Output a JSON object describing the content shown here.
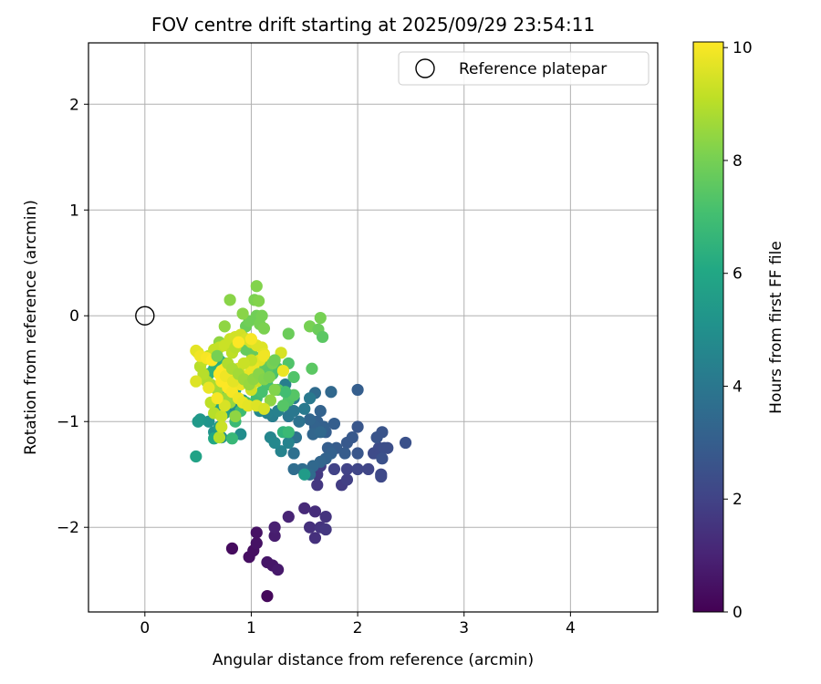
{
  "chart_data": {
    "type": "scatter",
    "title": "FOV centre drift starting at 2025/09/29 23:54:11",
    "xlabel": "Angular distance from reference (arcmin)",
    "ylabel": "Rotation from reference (arcmin)",
    "xlim": [
      -0.53,
      4.82
    ],
    "ylim": [
      -2.8,
      2.58
    ],
    "xticks": [
      0,
      1,
      2,
      3,
      4
    ],
    "yticks": [
      -2,
      -1,
      0,
      1,
      2
    ],
    "grid": true,
    "legend": {
      "placement": "top-right",
      "entries": [
        "Reference platepar"
      ]
    },
    "reference_point": {
      "x": 0,
      "y": 0,
      "label": "Reference platepar"
    },
    "colorbar": {
      "label": "Hours from first FF file",
      "min": 0,
      "max": 10.1,
      "ticks": [
        0,
        2,
        4,
        6,
        8,
        10
      ],
      "colormap": "viridis"
    },
    "points": [
      {
        "x": 1.15,
        "y": -2.65,
        "c": 0.2
      },
      {
        "x": 0.82,
        "y": -2.2,
        "c": 0.3
      },
      {
        "x": 0.98,
        "y": -2.28,
        "c": 0.4
      },
      {
        "x": 1.02,
        "y": -2.22,
        "c": 0.4
      },
      {
        "x": 1.05,
        "y": -2.15,
        "c": 0.5
      },
      {
        "x": 1.05,
        "y": -2.05,
        "c": 0.5
      },
      {
        "x": 1.15,
        "y": -2.33,
        "c": 0.6
      },
      {
        "x": 1.2,
        "y": -2.36,
        "c": 0.6
      },
      {
        "x": 1.25,
        "y": -2.4,
        "c": 0.7
      },
      {
        "x": 1.22,
        "y": -2.08,
        "c": 0.8
      },
      {
        "x": 1.22,
        "y": -2.0,
        "c": 0.9
      },
      {
        "x": 1.35,
        "y": -1.9,
        "c": 1.0
      },
      {
        "x": 1.5,
        "y": -1.82,
        "c": 1.2
      },
      {
        "x": 1.6,
        "y": -1.85,
        "c": 1.3
      },
      {
        "x": 1.55,
        "y": -2.0,
        "c": 1.4
      },
      {
        "x": 1.6,
        "y": -2.1,
        "c": 1.4
      },
      {
        "x": 1.65,
        "y": -2.0,
        "c": 1.5
      },
      {
        "x": 1.7,
        "y": -1.9,
        "c": 1.5
      },
      {
        "x": 1.7,
        "y": -2.02,
        "c": 1.6
      },
      {
        "x": 1.62,
        "y": -1.6,
        "c": 1.6
      },
      {
        "x": 1.62,
        "y": -1.5,
        "c": 1.7
      },
      {
        "x": 1.65,
        "y": -1.42,
        "c": 1.8
      },
      {
        "x": 1.85,
        "y": -1.6,
        "c": 1.8
      },
      {
        "x": 1.9,
        "y": -1.55,
        "c": 1.9
      },
      {
        "x": 1.78,
        "y": -1.45,
        "c": 2.0
      },
      {
        "x": 1.9,
        "y": -1.45,
        "c": 2.0
      },
      {
        "x": 2.0,
        "y": -1.45,
        "c": 2.1
      },
      {
        "x": 2.1,
        "y": -1.45,
        "c": 2.1
      },
      {
        "x": 2.22,
        "y": -1.5,
        "c": 2.2
      },
      {
        "x": 2.22,
        "y": -1.52,
        "c": 2.2
      },
      {
        "x": 2.15,
        "y": -1.3,
        "c": 2.3
      },
      {
        "x": 2.2,
        "y": -1.25,
        "c": 2.3
      },
      {
        "x": 2.25,
        "y": -1.25,
        "c": 2.4
      },
      {
        "x": 2.28,
        "y": -1.25,
        "c": 2.4
      },
      {
        "x": 2.23,
        "y": -1.35,
        "c": 2.5
      },
      {
        "x": 2.45,
        "y": -1.2,
        "c": 2.5
      },
      {
        "x": 2.23,
        "y": -1.1,
        "c": 2.6
      },
      {
        "x": 2.18,
        "y": -1.15,
        "c": 2.6
      },
      {
        "x": 2.0,
        "y": -1.05,
        "c": 2.7
      },
      {
        "x": 2.0,
        "y": -1.3,
        "c": 2.7
      },
      {
        "x": 1.9,
        "y": -1.2,
        "c": 2.8
      },
      {
        "x": 1.95,
        "y": -1.15,
        "c": 2.8
      },
      {
        "x": 1.88,
        "y": -1.3,
        "c": 2.9
      },
      {
        "x": 1.8,
        "y": -1.25,
        "c": 2.9
      },
      {
        "x": 1.72,
        "y": -1.25,
        "c": 3.0
      },
      {
        "x": 1.7,
        "y": -1.1,
        "c": 3.0
      },
      {
        "x": 1.78,
        "y": -1.02,
        "c": 3.0
      },
      {
        "x": 1.68,
        "y": -1.05,
        "c": 3.1
      },
      {
        "x": 1.62,
        "y": -1.0,
        "c": 3.1
      },
      {
        "x": 1.65,
        "y": -0.9,
        "c": 3.2
      },
      {
        "x": 1.6,
        "y": -1.05,
        "c": 3.2
      },
      {
        "x": 1.55,
        "y": -0.98,
        "c": 3.3
      },
      {
        "x": 1.58,
        "y": -1.12,
        "c": 3.3
      },
      {
        "x": 1.65,
        "y": -1.1,
        "c": 3.4
      },
      {
        "x": 1.75,
        "y": -0.72,
        "c": 3.4
      },
      {
        "x": 1.6,
        "y": -0.73,
        "c": 3.5
      },
      {
        "x": 2.0,
        "y": -0.7,
        "c": 3.0
      },
      {
        "x": 1.75,
        "y": -1.3,
        "c": 3.1
      },
      {
        "x": 1.7,
        "y": -1.35,
        "c": 3.2
      },
      {
        "x": 1.65,
        "y": -1.38,
        "c": 3.3
      },
      {
        "x": 1.58,
        "y": -1.42,
        "c": 3.4
      },
      {
        "x": 1.55,
        "y": -1.5,
        "c": 3.5
      },
      {
        "x": 1.48,
        "y": -1.45,
        "c": 3.6
      },
      {
        "x": 1.4,
        "y": -1.45,
        "c": 3.6
      },
      {
        "x": 1.4,
        "y": -1.3,
        "c": 3.7
      },
      {
        "x": 1.42,
        "y": -1.15,
        "c": 3.8
      },
      {
        "x": 1.45,
        "y": -1.0,
        "c": 3.8
      },
      {
        "x": 1.38,
        "y": -0.9,
        "c": 3.9
      },
      {
        "x": 1.35,
        "y": -0.95,
        "c": 4.0
      },
      {
        "x": 1.4,
        "y": -0.9,
        "c": 4.0
      },
      {
        "x": 1.5,
        "y": -0.88,
        "c": 4.1
      },
      {
        "x": 1.55,
        "y": -0.78,
        "c": 4.1
      },
      {
        "x": 1.4,
        "y": -0.78,
        "c": 4.2
      },
      {
        "x": 1.32,
        "y": -0.65,
        "c": 4.3
      },
      {
        "x": 1.2,
        "y": -0.95,
        "c": 4.3
      },
      {
        "x": 1.15,
        "y": -0.92,
        "c": 4.4
      },
      {
        "x": 1.25,
        "y": -0.9,
        "c": 4.4
      },
      {
        "x": 1.28,
        "y": -1.28,
        "c": 4.5
      },
      {
        "x": 1.35,
        "y": -1.2,
        "c": 4.5
      },
      {
        "x": 1.18,
        "y": -1.15,
        "c": 4.6
      },
      {
        "x": 1.22,
        "y": -1.2,
        "c": 4.7
      },
      {
        "x": 1.08,
        "y": -0.9,
        "c": 4.7
      },
      {
        "x": 0.92,
        "y": -0.8,
        "c": 4.8
      },
      {
        "x": 0.85,
        "y": -0.88,
        "c": 4.9
      },
      {
        "x": 0.9,
        "y": -1.12,
        "c": 4.9
      },
      {
        "x": 0.72,
        "y": -1.15,
        "c": 5.0
      },
      {
        "x": 0.65,
        "y": -1.1,
        "c": 5.1
      },
      {
        "x": 0.6,
        "y": -1.0,
        "c": 5.2
      },
      {
        "x": 0.52,
        "y": -0.98,
        "c": 5.3
      },
      {
        "x": 0.5,
        "y": -1.0,
        "c": 5.4
      },
      {
        "x": 0.48,
        "y": -1.33,
        "c": 5.8
      },
      {
        "x": 0.65,
        "y": -1.16,
        "c": 6.0
      },
      {
        "x": 0.7,
        "y": -1.05,
        "c": 5.5
      },
      {
        "x": 0.75,
        "y": -0.92,
        "c": 5.6
      },
      {
        "x": 0.7,
        "y": -0.85,
        "c": 5.7
      },
      {
        "x": 0.78,
        "y": -0.75,
        "c": 5.8
      },
      {
        "x": 0.85,
        "y": -0.7,
        "c": 5.9
      },
      {
        "x": 0.82,
        "y": -0.62,
        "c": 6.0
      },
      {
        "x": 0.78,
        "y": -0.55,
        "c": 6.1
      },
      {
        "x": 0.75,
        "y": -0.45,
        "c": 6.2
      },
      {
        "x": 0.7,
        "y": -0.42,
        "c": 6.3
      },
      {
        "x": 0.65,
        "y": -0.5,
        "c": 6.4
      },
      {
        "x": 0.6,
        "y": -0.55,
        "c": 6.5
      },
      {
        "x": 1.5,
        "y": -1.5,
        "c": 5.5
      },
      {
        "x": 1.3,
        "y": -1.1,
        "c": 6.5
      },
      {
        "x": 0.82,
        "y": -1.16,
        "c": 6.7
      },
      {
        "x": 0.85,
        "y": -1.0,
        "c": 6.8
      },
      {
        "x": 0.9,
        "y": -0.9,
        "c": 6.9
      },
      {
        "x": 0.95,
        "y": -0.82,
        "c": 7.0
      },
      {
        "x": 1.05,
        "y": -0.78,
        "c": 7.0
      },
      {
        "x": 1.1,
        "y": -0.72,
        "c": 7.1
      },
      {
        "x": 1.15,
        "y": -0.65,
        "c": 7.1
      },
      {
        "x": 1.2,
        "y": -0.55,
        "c": 7.2
      },
      {
        "x": 1.25,
        "y": -0.5,
        "c": 7.2
      },
      {
        "x": 1.35,
        "y": -0.45,
        "c": 7.3
      },
      {
        "x": 1.4,
        "y": -0.58,
        "c": 7.3
      },
      {
        "x": 1.35,
        "y": -0.8,
        "c": 7.3
      },
      {
        "x": 1.4,
        "y": -0.75,
        "c": 7.4
      },
      {
        "x": 1.3,
        "y": -0.85,
        "c": 7.4
      },
      {
        "x": 1.25,
        "y": -0.7,
        "c": 7.5
      },
      {
        "x": 1.15,
        "y": -0.5,
        "c": 7.5
      },
      {
        "x": 1.1,
        "y": -0.45,
        "c": 7.6
      },
      {
        "x": 1.05,
        "y": -0.4,
        "c": 7.6
      },
      {
        "x": 1.0,
        "y": -0.35,
        "c": 7.7
      },
      {
        "x": 0.95,
        "y": -0.32,
        "c": 7.7
      },
      {
        "x": 0.92,
        "y": -0.2,
        "c": 7.8
      },
      {
        "x": 0.95,
        "y": -0.1,
        "c": 7.8
      },
      {
        "x": 0.98,
        "y": -0.05,
        "c": 7.9
      },
      {
        "x": 1.05,
        "y": 0.0,
        "c": 7.9
      },
      {
        "x": 1.1,
        "y": 0.0,
        "c": 8.0
      },
      {
        "x": 1.08,
        "y": -0.08,
        "c": 8.0
      },
      {
        "x": 1.12,
        "y": -0.12,
        "c": 8.1
      },
      {
        "x": 1.03,
        "y": 0.15,
        "c": 8.1
      },
      {
        "x": 1.07,
        "y": 0.14,
        "c": 8.2
      },
      {
        "x": 1.05,
        "y": 0.28,
        "c": 8.2
      },
      {
        "x": 0.92,
        "y": 0.02,
        "c": 8.3
      },
      {
        "x": 0.8,
        "y": 0.15,
        "c": 8.3
      },
      {
        "x": 0.75,
        "y": -0.1,
        "c": 8.4
      },
      {
        "x": 0.7,
        "y": -0.25,
        "c": 8.4
      },
      {
        "x": 1.55,
        "y": -0.1,
        "c": 8.0
      },
      {
        "x": 1.65,
        "y": -0.02,
        "c": 8.0
      },
      {
        "x": 1.63,
        "y": -0.13,
        "c": 7.8
      },
      {
        "x": 1.67,
        "y": -0.2,
        "c": 7.5
      },
      {
        "x": 1.57,
        "y": -0.5,
        "c": 7.5
      },
      {
        "x": 1.35,
        "y": -0.17,
        "c": 7.8
      },
      {
        "x": 1.32,
        "y": -0.72,
        "c": 7.0
      },
      {
        "x": 1.35,
        "y": -1.1,
        "c": 6.8
      },
      {
        "x": 1.22,
        "y": -0.7,
        "c": 8.2
      },
      {
        "x": 1.18,
        "y": -0.8,
        "c": 8.4
      },
      {
        "x": 0.85,
        "y": -0.95,
        "c": 8.4
      },
      {
        "x": 0.8,
        "y": -0.82,
        "c": 8.5
      },
      {
        "x": 0.75,
        "y": -0.78,
        "c": 8.6
      },
      {
        "x": 0.68,
        "y": -0.7,
        "c": 8.7
      },
      {
        "x": 0.62,
        "y": -0.65,
        "c": 8.8
      },
      {
        "x": 0.58,
        "y": -0.62,
        "c": 8.9
      },
      {
        "x": 0.55,
        "y": -0.55,
        "c": 9.0
      },
      {
        "x": 0.52,
        "y": -0.48,
        "c": 9.0
      },
      {
        "x": 0.55,
        "y": -0.42,
        "c": 9.1
      },
      {
        "x": 0.6,
        "y": -0.38,
        "c": 9.1
      },
      {
        "x": 0.65,
        "y": -0.32,
        "c": 9.2
      },
      {
        "x": 0.7,
        "y": -0.3,
        "c": 9.2
      },
      {
        "x": 0.75,
        "y": -0.28,
        "c": 9.3
      },
      {
        "x": 0.8,
        "y": -0.22,
        "c": 9.3
      },
      {
        "x": 0.85,
        "y": -0.2,
        "c": 9.4
      },
      {
        "x": 0.9,
        "y": -0.18,
        "c": 9.4
      },
      {
        "x": 0.95,
        "y": -0.22,
        "c": 9.5
      },
      {
        "x": 1.0,
        "y": -0.25,
        "c": 9.5
      },
      {
        "x": 1.05,
        "y": -0.28,
        "c": 9.6
      },
      {
        "x": 1.1,
        "y": -0.3,
        "c": 9.6
      },
      {
        "x": 1.12,
        "y": -0.36,
        "c": 9.7
      },
      {
        "x": 1.08,
        "y": -0.42,
        "c": 9.7
      },
      {
        "x": 1.02,
        "y": -0.48,
        "c": 9.8
      },
      {
        "x": 0.98,
        "y": -0.55,
        "c": 9.8
      },
      {
        "x": 0.95,
        "y": -0.6,
        "c": 9.9
      },
      {
        "x": 0.9,
        "y": -0.65,
        "c": 9.9
      },
      {
        "x": 0.85,
        "y": -0.58,
        "c": 10.0
      },
      {
        "x": 0.8,
        "y": -0.52,
        "c": 10.0
      },
      {
        "x": 0.75,
        "y": -0.5,
        "c": 10.0
      },
      {
        "x": 0.7,
        "y": -0.55,
        "c": 10.1
      },
      {
        "x": 0.72,
        "y": -0.62,
        "c": 10.1
      },
      {
        "x": 0.78,
        "y": -0.68,
        "c": 10.1
      },
      {
        "x": 0.82,
        "y": -0.72,
        "c": 10.0
      },
      {
        "x": 0.88,
        "y": -0.78,
        "c": 9.9
      },
      {
        "x": 0.92,
        "y": -0.82,
        "c": 9.8
      },
      {
        "x": 0.97,
        "y": -0.85,
        "c": 9.7
      },
      {
        "x": 1.05,
        "y": -0.85,
        "c": 9.6
      },
      {
        "x": 1.12,
        "y": -0.88,
        "c": 9.5
      },
      {
        "x": 1.0,
        "y": -0.7,
        "c": 9.4
      },
      {
        "x": 1.05,
        "y": -0.62,
        "c": 9.3
      },
      {
        "x": 1.0,
        "y": -0.42,
        "c": 9.2
      },
      {
        "x": 0.62,
        "y": -0.82,
        "c": 9.1
      },
      {
        "x": 0.65,
        "y": -0.92,
        "c": 9.0
      },
      {
        "x": 0.72,
        "y": -0.95,
        "c": 9.2
      },
      {
        "x": 0.7,
        "y": -1.15,
        "c": 9.0
      },
      {
        "x": 0.72,
        "y": -1.05,
        "c": 9.3
      },
      {
        "x": 0.75,
        "y": -0.85,
        "c": 9.5
      },
      {
        "x": 0.5,
        "y": -0.35,
        "c": 9.5
      },
      {
        "x": 0.48,
        "y": -0.33,
        "c": 9.7
      },
      {
        "x": 0.52,
        "y": -0.38,
        "c": 9.9
      },
      {
        "x": 0.58,
        "y": -0.4,
        "c": 10.0
      },
      {
        "x": 0.63,
        "y": -0.42,
        "c": 10.1
      },
      {
        "x": 0.48,
        "y": -0.62,
        "c": 9.6
      },
      {
        "x": 0.6,
        "y": -0.68,
        "c": 9.8
      },
      {
        "x": 0.68,
        "y": -0.78,
        "c": 10.0
      },
      {
        "x": 0.72,
        "y": -0.52,
        "c": 10.1
      },
      {
        "x": 0.76,
        "y": -0.57,
        "c": 9.9
      },
      {
        "x": 0.83,
        "y": -0.62,
        "c": 9.7
      },
      {
        "x": 0.88,
        "y": -0.5,
        "c": 9.5
      },
      {
        "x": 0.93,
        "y": -0.45,
        "c": 9.3
      },
      {
        "x": 0.82,
        "y": -0.35,
        "c": 9.1
      },
      {
        "x": 0.85,
        "y": -0.3,
        "c": 9.0
      },
      {
        "x": 1.28,
        "y": -0.35,
        "c": 9.5
      },
      {
        "x": 1.3,
        "y": -0.52,
        "c": 9.8
      },
      {
        "x": 1.12,
        "y": -0.38,
        "c": 9.9
      },
      {
        "x": 1.0,
        "y": -0.22,
        "c": 10.0
      },
      {
        "x": 0.88,
        "y": -0.25,
        "c": 10.1
      },
      {
        "x": 0.78,
        "y": -0.45,
        "c": 8.9
      },
      {
        "x": 0.82,
        "y": -0.5,
        "c": 8.8
      },
      {
        "x": 0.88,
        "y": -0.55,
        "c": 8.7
      },
      {
        "x": 0.93,
        "y": -0.6,
        "c": 8.6
      },
      {
        "x": 0.98,
        "y": -0.65,
        "c": 8.5
      },
      {
        "x": 1.02,
        "y": -0.6,
        "c": 8.4
      },
      {
        "x": 1.07,
        "y": -0.55,
        "c": 8.3
      },
      {
        "x": 1.12,
        "y": -0.6,
        "c": 8.2
      },
      {
        "x": 1.17,
        "y": -0.58,
        "c": 8.1
      },
      {
        "x": 1.2,
        "y": -0.45,
        "c": 8.0
      },
      {
        "x": 1.22,
        "y": -0.42,
        "c": 7.9
      },
      {
        "x": 0.68,
        "y": -0.38,
        "c": 8.0
      }
    ]
  }
}
